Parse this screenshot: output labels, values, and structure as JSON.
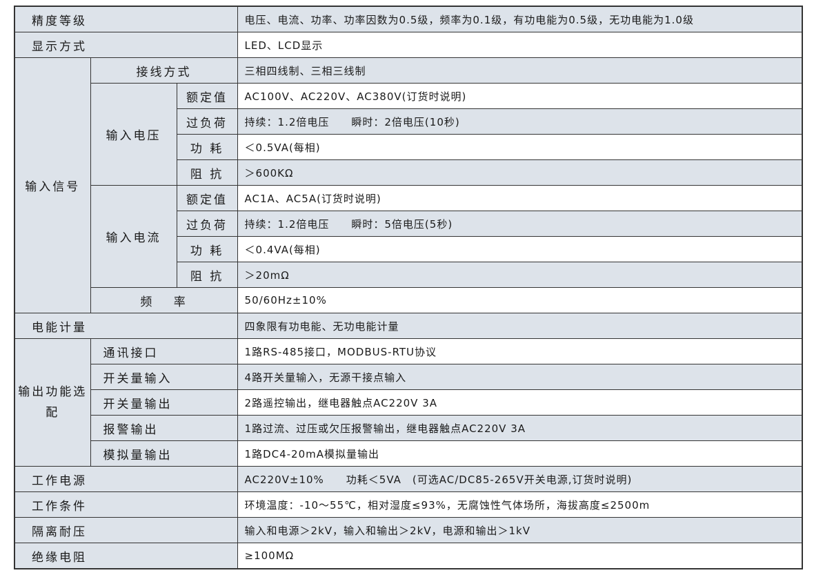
{
  "rows": [
    {
      "label": "精度等级",
      "value": "电压、电流、功率、功率因数为0.5级，频率为0.1级，有功电能为0.5级，无功电能为1.0级"
    },
    {
      "label": "显示方式",
      "value": "LED、LCD显示"
    },
    {
      "group": "输入信号",
      "label": "接线方式",
      "value": "三相四线制、三相三线制"
    },
    {
      "subgroup": "输入电压",
      "label": "额定值",
      "value": "AC100V、AC220V、AC380V(订货时说明)"
    },
    {
      "label": "过负荷",
      "value": "持续：1.2倍电压　　瞬时：2倍电压(10秒)"
    },
    {
      "label": "功 耗",
      "value": "＜0.5VA(每相)"
    },
    {
      "label": "阻 抗",
      "value": "＞600KΩ"
    },
    {
      "subgroup": "输入电流",
      "label": "额定值",
      "value": "AC1A、AC5A(订货时说明)"
    },
    {
      "label": "过负荷",
      "value": "持续：1.2倍电压　　瞬时：5倍电压(5秒)"
    },
    {
      "label": "功 耗",
      "value": "＜0.4VA(每相)"
    },
    {
      "label": "阻 抗",
      "value": "＞20mΩ"
    },
    {
      "label": "频　 率",
      "value": "50/60Hz±10%"
    },
    {
      "label": "电能计量",
      "value": "四象限有功电能、无功电能计量"
    },
    {
      "group": "输出功能选配",
      "label": "通讯接口",
      "value": "1路RS-485接口，MODBUS-RTU协议"
    },
    {
      "label": "开关量输入",
      "value": "4路开关量输入，无源干接点输入"
    },
    {
      "label": "开关量输出",
      "value": "2路遥控输出，继电器触点AC220V 3A"
    },
    {
      "label": "报警输出",
      "value": "1路过流、过压或欠压报警输出，继电器触点AC220V 3A"
    },
    {
      "label": "模拟量输出",
      "value": "1路DC4-20mA模拟量输出"
    },
    {
      "label": "工作电源",
      "value": "AC220V±10%　　功耗＜5VA　(可选AC/DC85-265V开关电源,订货时说明)"
    },
    {
      "label": "工作条件",
      "value": "环境温度：-10～55℃，相对湿度≤93%，无腐蚀性气体场所，海拔高度≤2500m"
    },
    {
      "label": "隔离耐压",
      "value": "输入和电源＞2kV，输入和输出＞2kV，电源和输出＞1kV"
    },
    {
      "label": "绝缘电阻",
      "value": "≥100MΩ"
    }
  ],
  "colors": {
    "shade": "#dde3ea",
    "border": "#333333"
  }
}
